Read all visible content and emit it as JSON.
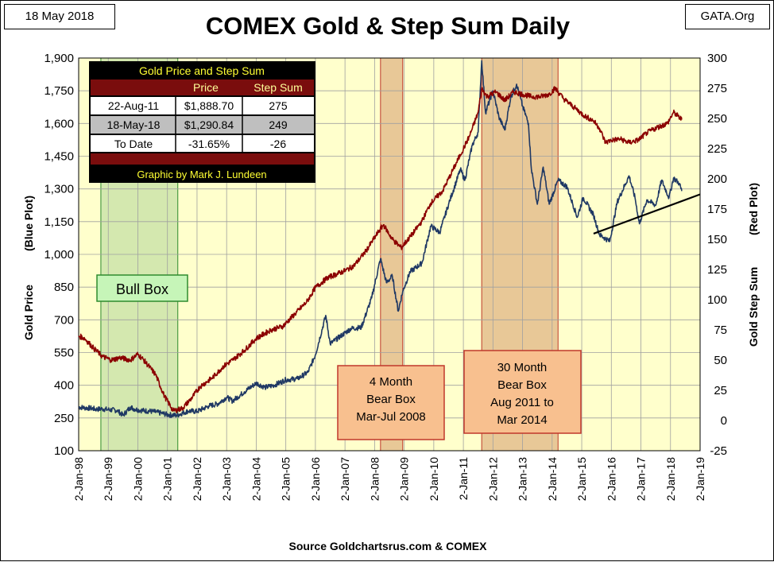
{
  "header": {
    "date": "18 May 2018",
    "title": "COMEX Gold & Step Sum Daily",
    "source_tag": "GATA.Org"
  },
  "footer": "Source Goldchartsrus.com & COMEX",
  "colors": {
    "plot_bg": "#ffffcc",
    "gold_line": "#1f3864",
    "stepsum_line": "#8b0000",
    "bull_box": "#c6e0a5",
    "bear_box": "#d9a373",
    "annotation_fill": "#f8c08f",
    "annotation_border": "#c0392b",
    "bull_label_fill": "#c6f5b8",
    "bull_label_border": "#2e8b2e",
    "table_bg": "#000000",
    "table_title_text": "#ffff33",
    "table_header_bg": "#7a0d0d",
    "table_header_text": "#ffff99",
    "table_row_light": "#ffffff",
    "table_row_gray": "#bfbfbf",
    "table_credit_text": "#ffff33"
  },
  "table": {
    "title": "Gold Price and Step Sum",
    "col_price": "Price",
    "col_stepsum": "Step Sum",
    "rows": [
      {
        "date": "22-Aug-11",
        "price": "$1,888.70",
        "stepsum": "275"
      },
      {
        "date": "18-May-18",
        "price": "$1,290.84",
        "stepsum": "249"
      },
      {
        "date": "To Date",
        "price": "-31.65%",
        "stepsum": "-26"
      }
    ],
    "credit": "Graphic by Mark J. Lundeen"
  },
  "annotations": {
    "bull_box": "Bull Box",
    "bear_box_2008": [
      "4 Month",
      "Bear Box",
      "Mar-Jul 2008"
    ],
    "bear_box_2011": [
      "30 Month",
      "Bear Box",
      "Aug 2011 to",
      "Mar 2014"
    ]
  },
  "chart_data": {
    "type": "line",
    "title": "COMEX Gold & Step Sum Daily",
    "left_axis_label": [
      "Gold Price",
      "(Blue Plot)"
    ],
    "right_axis_label": [
      "Gold Step Sum",
      "(Red Plot)"
    ],
    "left_ylim": [
      100,
      1900
    ],
    "left_ticks": [
      "100",
      "250",
      "400",
      "550",
      "700",
      "850",
      "1,000",
      "1,150",
      "1,300",
      "1,450",
      "1,600",
      "1,750",
      "1,900"
    ],
    "right_ylim": [
      -25,
      300
    ],
    "right_ticks": [
      "-25",
      "0",
      "25",
      "50",
      "75",
      "100",
      "125",
      "150",
      "175",
      "200",
      "225",
      "250",
      "275",
      "300"
    ],
    "x_range": [
      1998.0,
      2019.0
    ],
    "x_ticks": [
      "2-Jan-98",
      "2-Jan-99",
      "2-Jan-00",
      "2-Jan-01",
      "2-Jan-02",
      "2-Jan-03",
      "2-Jan-04",
      "2-Jan-05",
      "2-Jan-06",
      "2-Jan-07",
      "2-Jan-08",
      "2-Jan-09",
      "2-Jan-10",
      "2-Jan-11",
      "2-Jan-12",
      "2-Jan-13",
      "2-Jan-14",
      "2-Jan-15",
      "2-Jan-16",
      "2-Jan-17",
      "2-Jan-18",
      "2-Jan-19"
    ],
    "grid": true,
    "shaded_regions": [
      {
        "label": "Bull Box",
        "x": [
          1998.75,
          2001.35
        ],
        "kind": "bull"
      },
      {
        "label": "4 Month Bear Box Mar-Jul 2008",
        "x": [
          2008.2,
          2008.95
        ],
        "kind": "bear"
      },
      {
        "label": "30 Month Bear Box Aug 2011 to Mar 2014",
        "x": [
          2011.62,
          2014.2
        ],
        "kind": "bear"
      }
    ],
    "trend_line": {
      "from": [
        2015.4,
        1095
      ],
      "to": [
        2019.0,
        1275
      ],
      "axis": "left"
    },
    "series": [
      {
        "axis": "left",
        "points": [
          [
            1998.0,
            300
          ],
          [
            1998.2,
            297
          ],
          [
            1998.4,
            295
          ],
          [
            1998.6,
            290
          ],
          [
            1998.8,
            292
          ],
          [
            1999.0,
            288
          ],
          [
            1999.3,
            285
          ],
          [
            1999.5,
            262
          ],
          [
            1999.75,
            300
          ],
          [
            1999.9,
            290
          ],
          [
            2000.1,
            285
          ],
          [
            2000.5,
            280
          ],
          [
            2000.8,
            272
          ],
          [
            2001.0,
            265
          ],
          [
            2001.3,
            262
          ],
          [
            2001.7,
            282
          ],
          [
            2002.0,
            280
          ],
          [
            2002.4,
            305
          ],
          [
            2002.7,
            315
          ],
          [
            2003.0,
            345
          ],
          [
            2003.2,
            328
          ],
          [
            2003.6,
            370
          ],
          [
            2004.0,
            410
          ],
          [
            2004.3,
            390
          ],
          [
            2004.6,
            400
          ],
          [
            2005.0,
            425
          ],
          [
            2005.4,
            430
          ],
          [
            2005.75,
            460
          ],
          [
            2006.0,
            540
          ],
          [
            2006.35,
            720
          ],
          [
            2006.5,
            590
          ],
          [
            2006.9,
            630
          ],
          [
            2007.2,
            660
          ],
          [
            2007.55,
            665
          ],
          [
            2007.9,
            800
          ],
          [
            2008.2,
            980
          ],
          [
            2008.4,
            870
          ],
          [
            2008.6,
            900
          ],
          [
            2008.8,
            740
          ],
          [
            2008.95,
            830
          ],
          [
            2009.2,
            920
          ],
          [
            2009.6,
            960
          ],
          [
            2009.9,
            1130
          ],
          [
            2010.2,
            1100
          ],
          [
            2010.5,
            1230
          ],
          [
            2010.9,
            1390
          ],
          [
            2011.05,
            1340
          ],
          [
            2011.3,
            1500
          ],
          [
            2011.5,
            1560
          ],
          [
            2011.62,
            1888
          ],
          [
            2011.75,
            1650
          ],
          [
            2012.0,
            1750
          ],
          [
            2012.2,
            1630
          ],
          [
            2012.4,
            1570
          ],
          [
            2012.6,
            1720
          ],
          [
            2012.8,
            1780
          ],
          [
            2013.0,
            1680
          ],
          [
            2013.2,
            1600
          ],
          [
            2013.3,
            1390
          ],
          [
            2013.5,
            1230
          ],
          [
            2013.7,
            1400
          ],
          [
            2013.9,
            1230
          ],
          [
            2014.2,
            1340
          ],
          [
            2014.5,
            1310
          ],
          [
            2014.85,
            1170
          ],
          [
            2015.05,
            1260
          ],
          [
            2015.4,
            1180
          ],
          [
            2015.6,
            1090
          ],
          [
            2015.95,
            1060
          ],
          [
            2016.2,
            1240
          ],
          [
            2016.6,
            1360
          ],
          [
            2016.8,
            1260
          ],
          [
            2016.95,
            1140
          ],
          [
            2017.2,
            1250
          ],
          [
            2017.5,
            1225
          ],
          [
            2017.7,
            1340
          ],
          [
            2017.95,
            1260
          ],
          [
            2018.1,
            1350
          ],
          [
            2018.3,
            1325
          ],
          [
            2018.38,
            1290
          ]
        ]
      },
      {
        "axis": "right",
        "points": [
          [
            1998.0,
            70
          ],
          [
            1998.2,
            68
          ],
          [
            1998.5,
            60
          ],
          [
            1998.8,
            53
          ],
          [
            1999.1,
            50
          ],
          [
            1999.4,
            52
          ],
          [
            1999.75,
            50
          ],
          [
            2000.0,
            55
          ],
          [
            2000.2,
            50
          ],
          [
            2000.6,
            38
          ],
          [
            2000.9,
            20
          ],
          [
            2001.2,
            8
          ],
          [
            2001.5,
            10
          ],
          [
            2001.8,
            18
          ],
          [
            2002.1,
            28
          ],
          [
            2002.5,
            35
          ],
          [
            2002.9,
            45
          ],
          [
            2003.2,
            50
          ],
          [
            2003.6,
            58
          ],
          [
            2004.0,
            68
          ],
          [
            2004.5,
            75
          ],
          [
            2004.9,
            78
          ],
          [
            2005.3,
            88
          ],
          [
            2005.7,
            98
          ],
          [
            2006.0,
            110
          ],
          [
            2006.4,
            118
          ],
          [
            2006.8,
            122
          ],
          [
            2007.0,
            124
          ],
          [
            2007.3,
            128
          ],
          [
            2007.7,
            140
          ],
          [
            2008.1,
            155
          ],
          [
            2008.3,
            162
          ],
          [
            2008.6,
            150
          ],
          [
            2008.9,
            143
          ],
          [
            2009.3,
            155
          ],
          [
            2009.6,
            165
          ],
          [
            2009.9,
            180
          ],
          [
            2010.3,
            190
          ],
          [
            2010.6,
            205
          ],
          [
            2010.9,
            220
          ],
          [
            2011.2,
            235
          ],
          [
            2011.5,
            255
          ],
          [
            2011.62,
            275
          ],
          [
            2011.8,
            268
          ],
          [
            2012.1,
            272
          ],
          [
            2012.4,
            265
          ],
          [
            2012.7,
            272
          ],
          [
            2013.0,
            270
          ],
          [
            2013.3,
            268
          ],
          [
            2013.6,
            268
          ],
          [
            2013.9,
            270
          ],
          [
            2014.1,
            275
          ],
          [
            2014.4,
            266
          ],
          [
            2014.8,
            258
          ],
          [
            2015.1,
            252
          ],
          [
            2015.4,
            248
          ],
          [
            2015.6,
            242
          ],
          [
            2015.8,
            230
          ],
          [
            2016.0,
            232
          ],
          [
            2016.3,
            233
          ],
          [
            2016.6,
            230
          ],
          [
            2016.9,
            232
          ],
          [
            2017.2,
            238
          ],
          [
            2017.5,
            242
          ],
          [
            2017.9,
            246
          ],
          [
            2018.1,
            255
          ],
          [
            2018.25,
            252
          ],
          [
            2018.38,
            249
          ]
        ]
      }
    ]
  }
}
